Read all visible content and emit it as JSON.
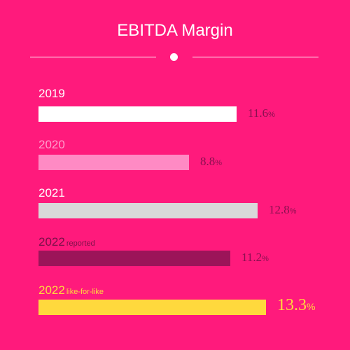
{
  "chart_data": {
    "type": "bar",
    "orientation": "horizontal",
    "title": "EBITDA Margin",
    "value_unit": "%",
    "categories": [
      "2019",
      "2020",
      "2021",
      "2022 reported",
      "2022 like-for-like"
    ],
    "values": [
      11.6,
      8.8,
      12.8,
      11.2,
      13.3
    ],
    "labels": [
      {
        "year": "2019",
        "suffix": ""
      },
      {
        "year": "2020",
        "suffix": ""
      },
      {
        "year": "2021",
        "suffix": ""
      },
      {
        "year": "2022",
        "suffix": "reported"
      },
      {
        "year": "2022",
        "suffix": "like-for-like"
      }
    ],
    "value_labels": [
      "11.6",
      "8.8",
      "12.8",
      "11.2",
      "13.3"
    ],
    "bar_colors": [
      "#ffffff",
      "#ff8ac4",
      "#d9d9d9",
      "#9c1459",
      "#ffd93d"
    ],
    "label_colors": [
      "#ffffff",
      "#ff9fcc",
      "#ffffff",
      "#7a1048",
      "#ffd93d"
    ],
    "value_colors": [
      "#8a1050",
      "#8a1050",
      "#8a1050",
      "#8a1050",
      "#ffd93d"
    ],
    "highlight_index": 4,
    "xlim": [
      0,
      13.3
    ],
    "grid": false,
    "legend": "none"
  }
}
